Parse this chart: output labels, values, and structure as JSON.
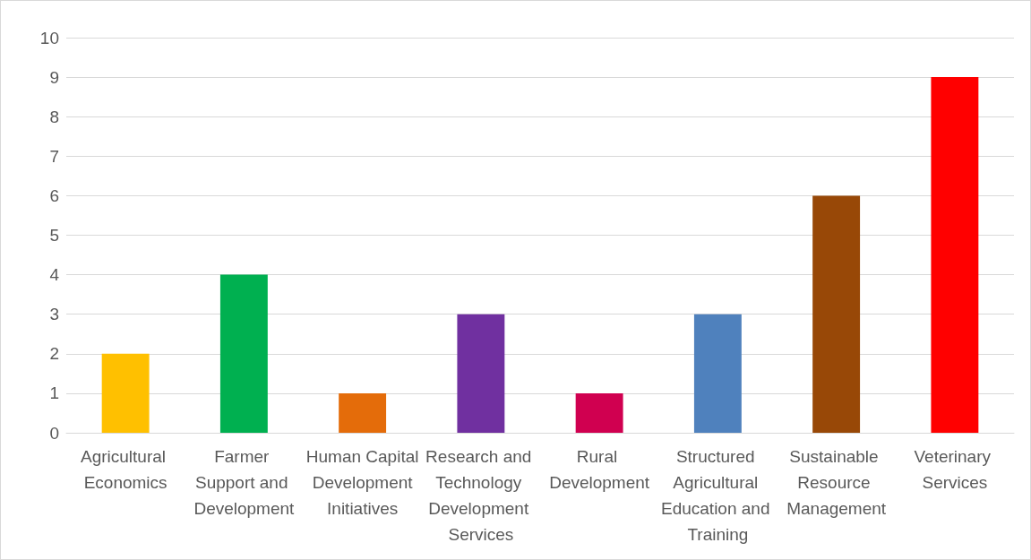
{
  "chart_data": {
    "type": "bar",
    "categories": [
      "Agricultural Economics",
      "Farmer Support and Development",
      "Human Capital Development Initiatives",
      "Research and Technology Development Services",
      "Rural Development",
      "Structured Agricultural Education and Training",
      "Sustainable Resource Management",
      "Veterinary Services"
    ],
    "values": [
      2,
      4,
      1,
      3,
      1,
      3,
      6,
      9
    ],
    "colors": [
      "#ffc000",
      "#00b050",
      "#e46c0a",
      "#7030a0",
      "#d00050",
      "#4f81bd",
      "#984807",
      "#ff0000"
    ],
    "ylim": [
      0,
      10
    ],
    "yticks": [
      0,
      1,
      2,
      3,
      4,
      5,
      6,
      7,
      8,
      9,
      10
    ],
    "grid": "y"
  }
}
